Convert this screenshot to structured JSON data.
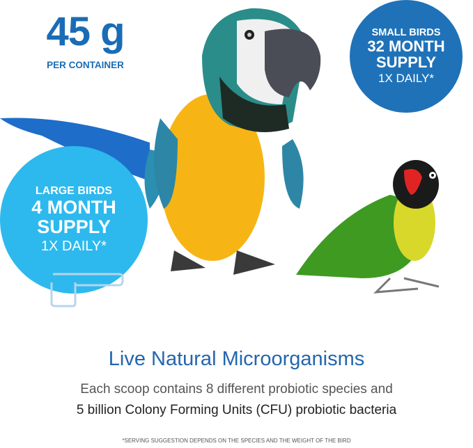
{
  "weight": {
    "value": "45 g",
    "label": "PER CONTAINER"
  },
  "small_birds": {
    "title": "SMALL BIRDS",
    "duration": "32 MONTH",
    "supply": "SUPPLY",
    "dose": "1X DAILY*",
    "color": "#1f72b8"
  },
  "large_birds": {
    "title": "LARGE BIRDS",
    "duration": "4 MONTH",
    "supply": "SUPPLY",
    "dose": "1X DAILY*",
    "color": "#2db9ee"
  },
  "heading": "Live Natural Microorganisms",
  "description": {
    "line1": "Each scoop contains 8 different probiotic species and",
    "line2": "5 billion Colony Forming Units (CFU) probiotic bacteria"
  },
  "footnote": "*SERVING SUGGESTION DEPENDS ON THE SPECIES AND THE WEIGHT OF THE BIRD",
  "images": {
    "macaw": "blue-and-yellow-macaw",
    "lovebird": "lovebird",
    "scoop": "scoop-icon"
  }
}
